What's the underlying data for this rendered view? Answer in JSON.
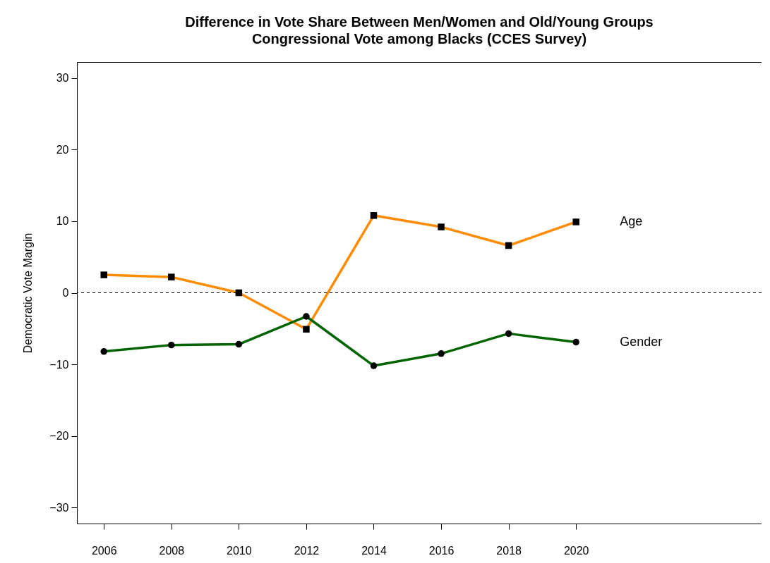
{
  "chart_data": {
    "type": "line",
    "title": "Difference in Vote Share Between Men/Women and Old/Young Groups",
    "subtitle": "Congressional Vote among Blacks (CCES Survey)",
    "ylabel": "Democratic Vote Margin",
    "x": [
      2006,
      2008,
      2010,
      2012,
      2014,
      2016,
      2018,
      2020
    ],
    "series": [
      {
        "name": "Age",
        "color": "#ff8c00",
        "marker": "square",
        "values": [
          2.5,
          2.2,
          0,
          -5.1,
          10.8,
          9.2,
          6.6,
          9.9
        ]
      },
      {
        "name": "Gender",
        "color": "#006400",
        "marker": "circle",
        "values": [
          -8.2,
          -7.3,
          -7.2,
          -3.3,
          -10.2,
          -8.5,
          -5.7,
          -6.9
        ]
      }
    ],
    "xlim": [
      2005.2,
      2025.5
    ],
    "xticks": [
      2006,
      2008,
      2010,
      2012,
      2014,
      2016,
      2018,
      2020
    ],
    "ylim": [
      -32.25,
      32.25
    ],
    "yticks": [
      -30,
      -20,
      -10,
      0,
      10,
      20,
      30
    ],
    "ref_lines": [
      {
        "axis": "y",
        "value": 0,
        "color": "#000000",
        "line_style": "dashed"
      }
    ],
    "grid": false
  }
}
